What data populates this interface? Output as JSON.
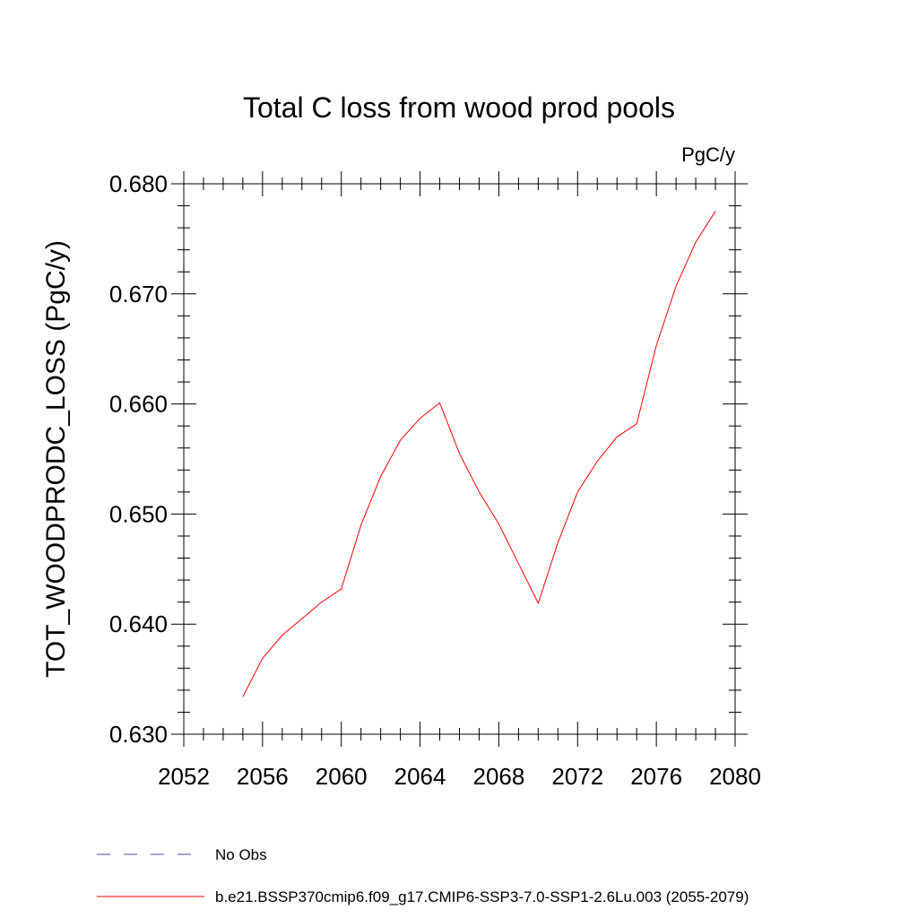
{
  "chart_data": {
    "type": "line",
    "title": "Total C loss from wood prod pools",
    "units_label": "PgC/y",
    "ylabel": "TOT_WOODPRODC_LOSS  (PgC/y)",
    "xlabel": "",
    "xlim": [
      2052,
      2080
    ],
    "ylim": [
      0.63,
      0.68
    ],
    "x_ticks": [
      "2052",
      "2056",
      "2060",
      "2064",
      "2068",
      "2072",
      "2076",
      "2080"
    ],
    "y_ticks": [
      "0.630",
      "0.640",
      "0.650",
      "0.660",
      "0.670",
      "0.680"
    ],
    "grid": false,
    "series": [
      {
        "name": "b.e21.BSSP370cmip6.f09_g17.CMIP6-SSP3-7.0-SSP1-2.6Lu.003 (2055-2079)",
        "color": "#ff0000",
        "line_style": "solid",
        "x": [
          2055,
          2056,
          2057,
          2058,
          2059,
          2060,
          2061,
          2062,
          2063,
          2064,
          2065,
          2066,
          2067,
          2068,
          2069,
          2070,
          2071,
          2072,
          2073,
          2074,
          2075,
          2076,
          2077,
          2078,
          2079
        ],
        "y": [
          0.6334,
          0.6369,
          0.639,
          0.6405,
          0.642,
          0.6432,
          0.649,
          0.6534,
          0.6567,
          0.6587,
          0.6601,
          0.6555,
          0.652,
          0.6491,
          0.6455,
          0.6419,
          0.6474,
          0.652,
          0.6548,
          0.657,
          0.6582,
          0.6653,
          0.6707,
          0.6747,
          0.6775
        ]
      }
    ],
    "legend": [
      {
        "label": "No Obs",
        "color": "#5a4a9e",
        "line_style": "dashed"
      },
      {
        "label": "b.e21.BSSP370cmip6.f09_g17.CMIP6-SSP3-7.0-SSP1-2.6Lu.003 (2055-2079)",
        "color": "#ff0000",
        "line_style": "solid"
      }
    ],
    "legend_placement": "bottom"
  }
}
